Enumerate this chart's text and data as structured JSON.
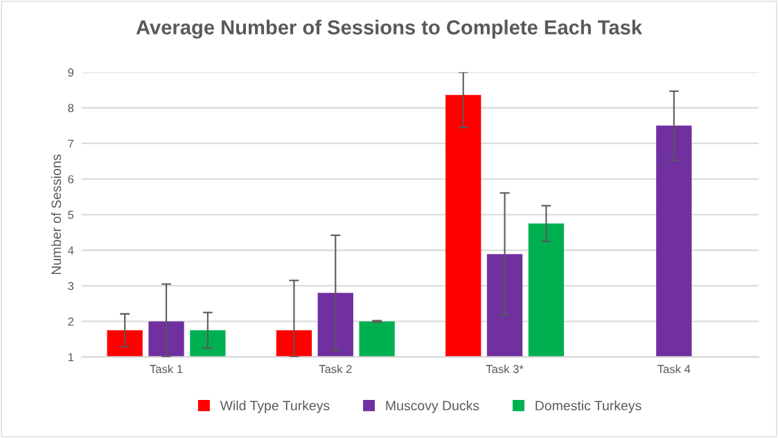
{
  "chart_data": {
    "type": "bar",
    "title": "Average Number of Sessions to Complete Each Task",
    "ylabel": "Number of Sessions",
    "categories": [
      "Task 1",
      "Task 2",
      "Task 3*",
      "Task 4"
    ],
    "series": [
      {
        "name": "Wild Type Turkeys",
        "color": "#ff0000",
        "values": [
          1.75,
          1.75,
          8.36,
          null
        ],
        "errors": [
          0.46,
          [
            1,
            3.15
          ],
          [
            7.45,
            9
          ],
          null
        ]
      },
      {
        "name": "Muscovy Ducks",
        "color": "#7030a0",
        "values": [
          2.0,
          2.8,
          3.89,
          7.5
        ],
        "errors": [
          [
            1,
            3.05
          ],
          1.62,
          1.72,
          0.97
        ]
      },
      {
        "name": "Domestic Turkeys",
        "color": "#00b050",
        "values": [
          1.75,
          2.0,
          4.75,
          null
        ],
        "errors": [
          0.5,
          0.02,
          0.5,
          null
        ]
      }
    ],
    "ylim": [
      1,
      9
    ],
    "yticks": [
      1,
      2,
      3,
      4,
      5,
      6,
      7,
      8,
      9
    ],
    "grid": "y",
    "legend": "bottom"
  }
}
